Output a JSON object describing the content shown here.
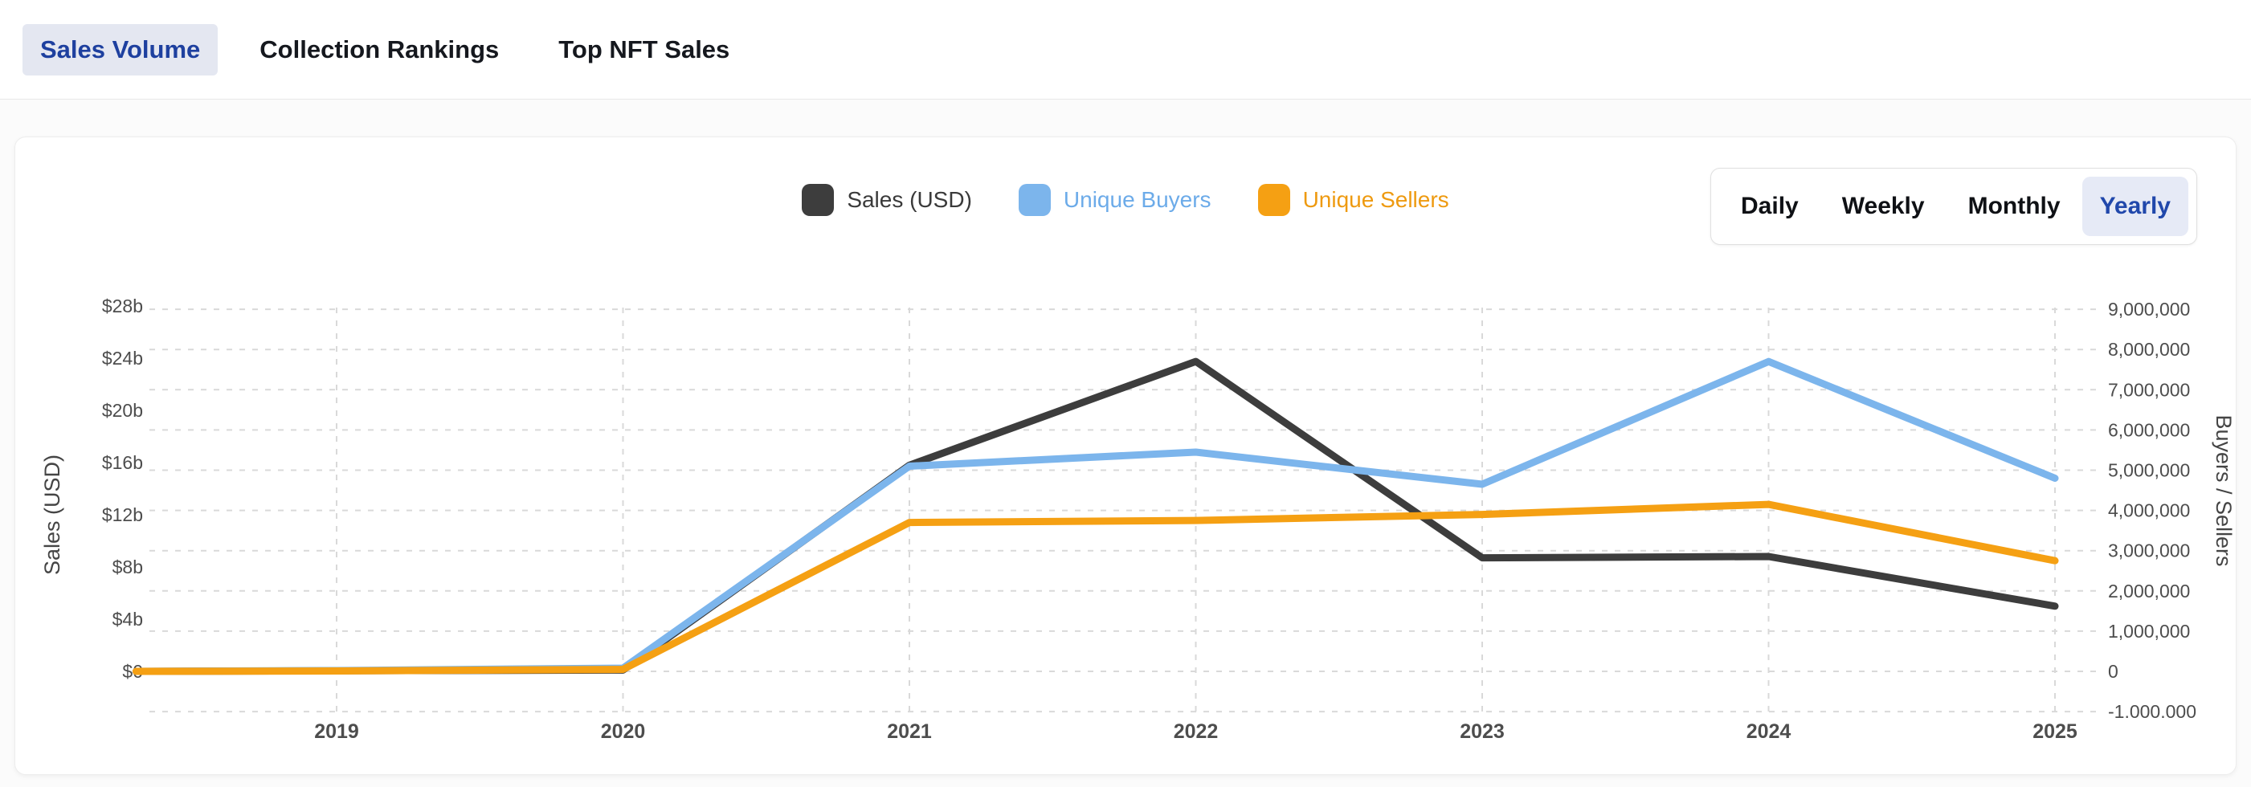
{
  "tabs": [
    {
      "label": "Sales Volume",
      "active": true
    },
    {
      "label": "Collection Rankings",
      "active": false
    },
    {
      "label": "Top NFT Sales",
      "active": false
    }
  ],
  "legend": {
    "items": [
      {
        "label": "Sales (USD)",
        "swatch_color": "#3d3d3d",
        "label_color": "#3a3a3a"
      },
      {
        "label": "Unique Buyers",
        "swatch_color": "#7cb5ec",
        "label_color": "#6cabe9"
      },
      {
        "label": "Unique Sellers",
        "swatch_color": "#f5a013",
        "label_color": "#ee9a10"
      }
    ]
  },
  "period_selector": {
    "options": [
      {
        "label": "Daily",
        "active": false
      },
      {
        "label": "Weekly",
        "active": false
      },
      {
        "label": "Monthly",
        "active": false
      },
      {
        "label": "Yearly",
        "active": true
      }
    ]
  },
  "colors": {
    "active_tab_text": "#1e409f",
    "active_tab_bg": "#e4e7f1",
    "active_period_text": "#2148ab",
    "active_period_bg": "#e6eaf6",
    "gridline": "#d9d9d9",
    "axis_text": "#4d4d4d"
  },
  "chart_data": {
    "type": "line",
    "x": [
      2018.3,
      2019,
      2020,
      2021,
      2022,
      2023,
      2024,
      2025
    ],
    "x_axis": {
      "ticks": [
        [
          2019,
          "2019"
        ],
        [
          2020,
          "2020"
        ],
        [
          2021,
          "2021"
        ],
        [
          2022,
          "2022"
        ],
        [
          2023,
          "2023"
        ],
        [
          2024,
          "2024"
        ],
        [
          2025,
          "2025"
        ]
      ]
    },
    "left_axis": {
      "title": "Sales (USD)",
      "unit": "USD (billions)",
      "min": 0,
      "max": 28,
      "ticks": [
        [
          0,
          "$0"
        ],
        [
          4,
          "$4b"
        ],
        [
          8,
          "$8b"
        ],
        [
          12,
          "$12b"
        ],
        [
          16,
          "$16b"
        ],
        [
          20,
          "$20b"
        ],
        [
          24,
          "$24b"
        ],
        [
          28,
          "$28b"
        ]
      ]
    },
    "right_axis": {
      "title": "Buyers / Sellers",
      "unit": "count",
      "min": -1000000,
      "max": 9000000,
      "ticks": [
        [
          9000000,
          "9,000,000"
        ],
        [
          8000000,
          "8,000,000"
        ],
        [
          7000000,
          "7,000,000"
        ],
        [
          6000000,
          "6,000,000"
        ],
        [
          5000000,
          "5,000,000"
        ],
        [
          4000000,
          "4,000,000"
        ],
        [
          3000000,
          "3,000,000"
        ],
        [
          2000000,
          "2,000,000"
        ],
        [
          1000000,
          "1,000,000"
        ],
        [
          0,
          "0"
        ],
        [
          -1000000,
          "-1.000.000"
        ]
      ]
    },
    "grid": "dashed",
    "legend_position": "top-center",
    "series": [
      {
        "name": "Sales (USD)",
        "axis": "left",
        "unit": "USD billions",
        "color": "#3d3d3d",
        "values": [
          0,
          0.05,
          0.1,
          15.8,
          23.75,
          8.7,
          8.8,
          5.0
        ]
      },
      {
        "name": "Unique Buyers",
        "axis": "right",
        "unit": "count",
        "color": "#7cb5ec",
        "values": [
          0,
          20000,
          80000,
          5100000,
          5450000,
          4650000,
          7700000,
          4800000
        ]
      },
      {
        "name": "Unique Sellers",
        "axis": "right",
        "unit": "count",
        "color": "#f5a013",
        "values": [
          0,
          10000,
          50000,
          3700000,
          3750000,
          3900000,
          4150000,
          2750000
        ]
      }
    ]
  }
}
